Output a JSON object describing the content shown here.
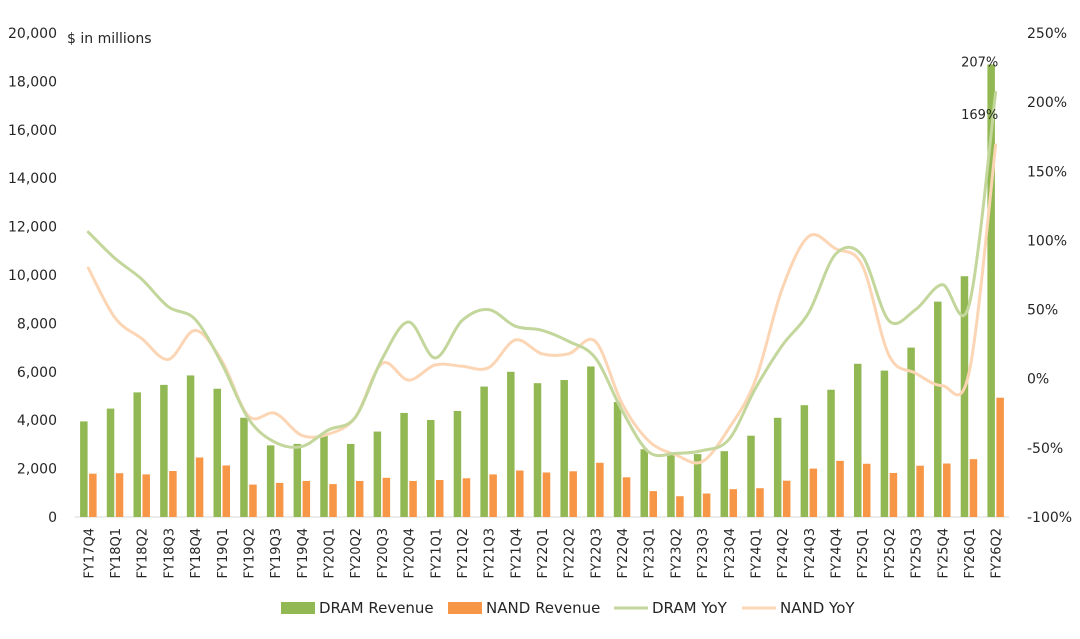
{
  "chart_data": {
    "type": "bar",
    "unit_label": "$ in millions",
    "categories": [
      "FY17Q4",
      "FY18Q1",
      "FY18Q2",
      "FY18Q3",
      "FY18Q4",
      "FY19Q1",
      "FY19Q2",
      "FY19Q3",
      "FY19Q4",
      "FY20Q1",
      "FY20Q2",
      "FY20Q3",
      "FY20Q4",
      "FY21Q1",
      "FY21Q2",
      "FY21Q3",
      "FY21Q4",
      "FY22Q1",
      "FY22Q2",
      "FY22Q3",
      "FY22Q4",
      "FY23Q1",
      "FY23Q2",
      "FY23Q3",
      "FY23Q4",
      "FY24Q1",
      "FY24Q2",
      "FY24Q3",
      "FY24Q4",
      "FY25Q1",
      "FY25Q2",
      "FY25Q3",
      "FY25Q4",
      "FY26Q1",
      "FY26Q2"
    ],
    "y_left": {
      "min": 0,
      "max": 20000,
      "ticks": [
        "0",
        "2,000",
        "4,000",
        "6,000",
        "8,000",
        "10,000",
        "12,000",
        "14,000",
        "16,000",
        "18,000",
        "20,000"
      ]
    },
    "y_right": {
      "min": -100,
      "max": 250,
      "ticks": [
        "-100%",
        "-50%",
        "0%",
        "50%",
        "100%",
        "150%",
        "200%",
        "250%"
      ]
    },
    "series": [
      {
        "name": "DRAM Revenue",
        "kind": "bar",
        "axis": "left",
        "color": "#92B853",
        "values": [
          3950,
          4480,
          5150,
          5460,
          5850,
          5300,
          4100,
          2960,
          3020,
          3400,
          3020,
          3530,
          4300,
          4010,
          4380,
          5390,
          6000,
          5530,
          5660,
          6220,
          4750,
          2800,
          2570,
          2600,
          2720,
          3360,
          4100,
          4620,
          5260,
          6330,
          6050,
          7000,
          8900,
          9950,
          18700
        ]
      },
      {
        "name": "NAND Revenue",
        "kind": "bar",
        "axis": "left",
        "color": "#F79646",
        "values": [
          1790,
          1810,
          1760,
          1900,
          2460,
          2130,
          1340,
          1410,
          1490,
          1360,
          1490,
          1620,
          1490,
          1530,
          1600,
          1760,
          1920,
          1840,
          1890,
          2240,
          1640,
          1070,
          860,
          970,
          1150,
          1190,
          1500,
          2000,
          2320,
          2200,
          1820,
          2120,
          2210,
          2390,
          4930
        ]
      },
      {
        "name": "DRAM YoY",
        "kind": "line",
        "axis": "right",
        "color": "#C3D69B",
        "values": [
          106,
          87,
          72,
          52,
          43,
          11,
          -29,
          -46,
          -49,
          -37,
          -28,
          14,
          41,
          15,
          42,
          50,
          38,
          35,
          27,
          15,
          -23,
          -53,
          -54,
          -52,
          -44,
          -7,
          24,
          48,
          90,
          89,
          42,
          50,
          68,
          53,
          207
        ]
      },
      {
        "name": "NAND YoY",
        "kind": "line",
        "axis": "right",
        "color": "#FCD5B5",
        "values": [
          80,
          44,
          29,
          14,
          35,
          13,
          -27,
          -25,
          -41,
          -40,
          -28,
          11,
          -1,
          10,
          9,
          8,
          28,
          18,
          18,
          27,
          -18,
          -45,
          -55,
          -60,
          -36,
          -1,
          65,
          103,
          94,
          82,
          17,
          4,
          -5,
          4,
          169
        ]
      }
    ],
    "annotations": [
      {
        "series": "DRAM YoY",
        "category": "FY26Q2",
        "text": "207%"
      },
      {
        "series": "NAND YoY",
        "category": "FY26Q2",
        "text": "169%"
      }
    ],
    "legend": {
      "position": "bottom",
      "entries": [
        "DRAM Revenue",
        "NAND Revenue",
        "DRAM YoY",
        "NAND YoY"
      ]
    }
  }
}
